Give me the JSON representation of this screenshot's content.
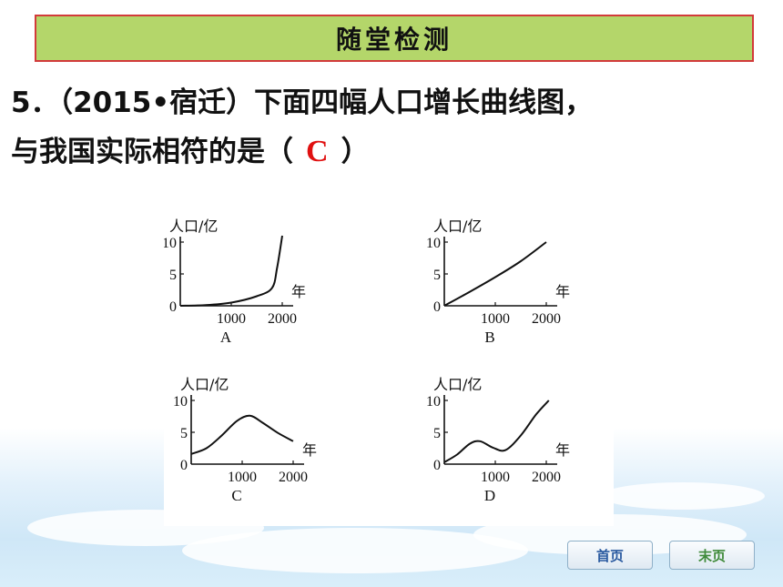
{
  "header": {
    "title": "随堂检测"
  },
  "question": {
    "prefix": "5．（2015•宿迁）下面四幅人口增长曲线图，",
    "line2_before": "与我国实际相符的是（",
    "answer": "C",
    "line2_after": "）"
  },
  "figure": {
    "y_label": "人口/亿",
    "x_label": "年",
    "y_ticks": [
      "10",
      "5",
      "0"
    ],
    "x_ticks": [
      "1000",
      "2000"
    ],
    "panels": [
      {
        "label": "A",
        "curve": [
          [
            0,
            0
          ],
          [
            500,
            0.1
          ],
          [
            1000,
            0.5
          ],
          [
            1500,
            1.5
          ],
          [
            1800,
            2.8
          ],
          [
            1900,
            6
          ],
          [
            2000,
            11
          ]
        ]
      },
      {
        "label": "B",
        "curve": [
          [
            0,
            0
          ],
          [
            500,
            2.2
          ],
          [
            1000,
            4.5
          ],
          [
            1500,
            7
          ],
          [
            2000,
            10
          ]
        ]
      },
      {
        "label": "C",
        "curve": [
          [
            0,
            1.6
          ],
          [
            300,
            2.5
          ],
          [
            600,
            4.5
          ],
          [
            900,
            6.8
          ],
          [
            1150,
            7.6
          ],
          [
            1400,
            6.5
          ],
          [
            1700,
            4.9
          ],
          [
            2000,
            3.6
          ]
        ]
      },
      {
        "label": "D",
        "curve": [
          [
            0,
            0.3
          ],
          [
            250,
            1.5
          ],
          [
            500,
            3.2
          ],
          [
            700,
            3.6
          ],
          [
            950,
            2.6
          ],
          [
            1200,
            2.2
          ],
          [
            1500,
            4.5
          ],
          [
            1800,
            7.8
          ],
          [
            2050,
            10
          ]
        ]
      }
    ]
  },
  "nav": {
    "first": "首页",
    "last": "末页"
  },
  "colors": {
    "title_bg": "#b4d66a",
    "title_border": "#d23a3a",
    "answer": "#e01010"
  }
}
